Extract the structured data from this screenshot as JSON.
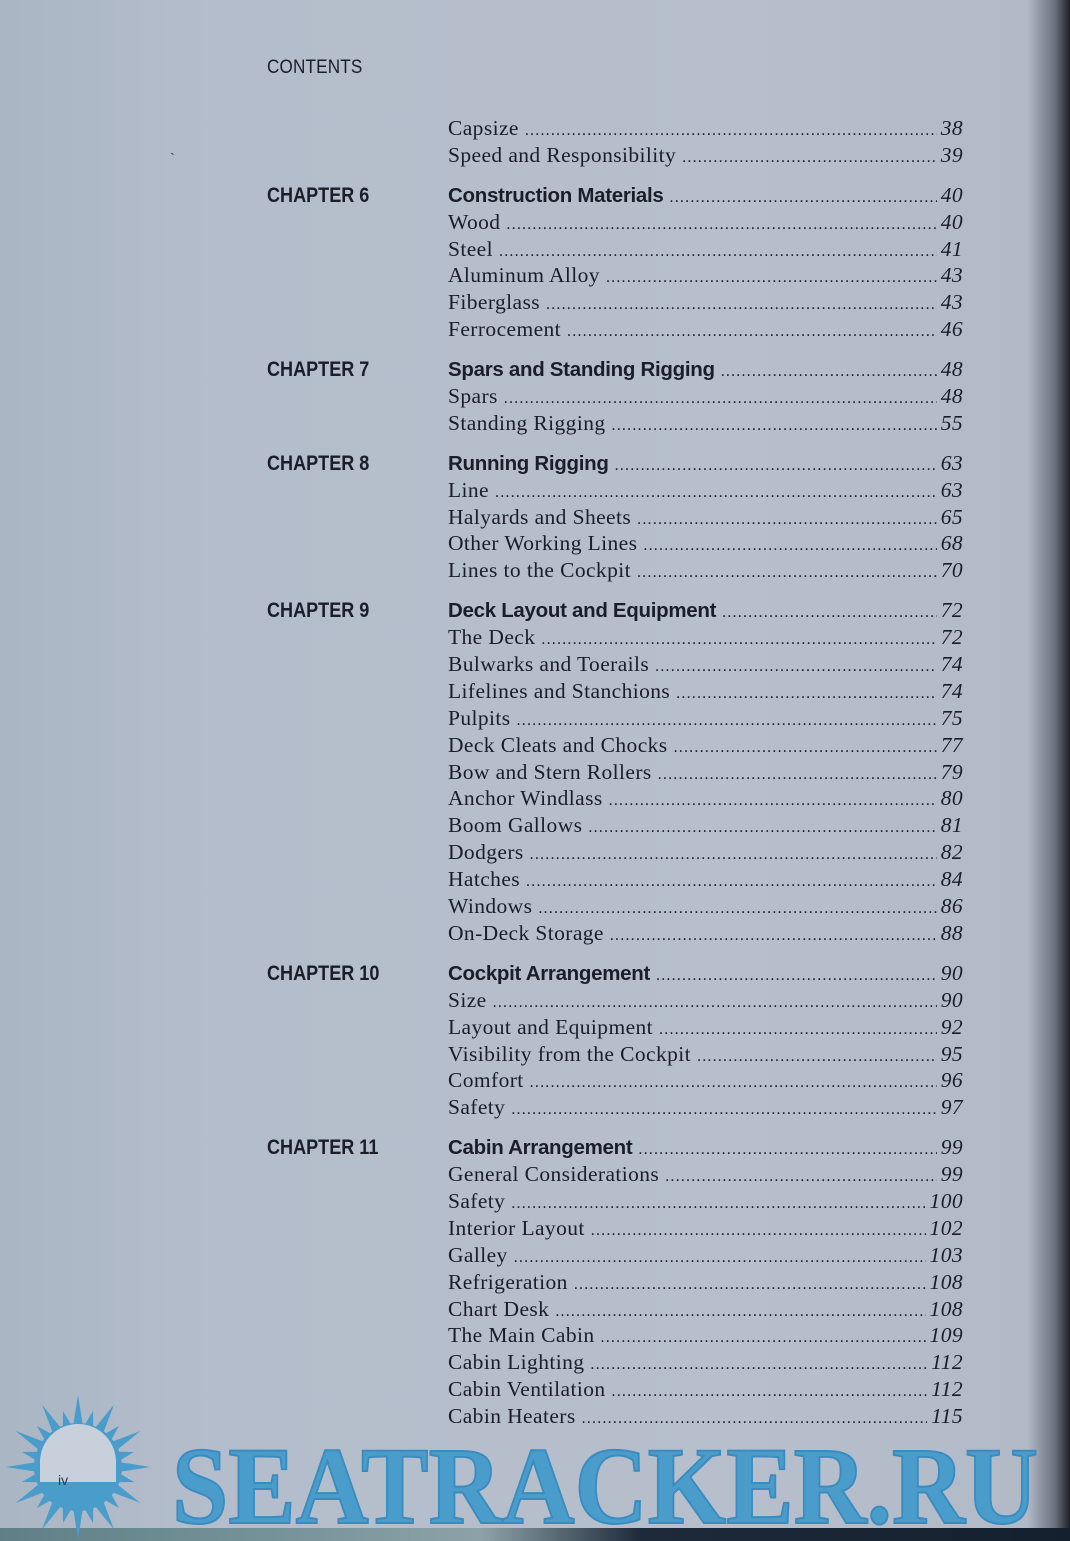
{
  "header": "CONTENTS",
  "page_number": "iv",
  "watermark": {
    "text": "SEATRACKER.RU",
    "color": "#4a9ccb"
  },
  "colors": {
    "page": "#b6bfcc",
    "text": "#1b1e28"
  },
  "groups": [
    {
      "chapter": "",
      "entries": [
        {
          "title": "Capsize",
          "page": "38"
        },
        {
          "title": "Speed and Responsibility",
          "page": "39"
        }
      ]
    },
    {
      "chapter": "CHAPTER 6",
      "entries": [
        {
          "title": "Construction Materials",
          "page": "40",
          "heading": true
        },
        {
          "title": "Wood",
          "page": "40"
        },
        {
          "title": "Steel",
          "page": "41"
        },
        {
          "title": "Aluminum Alloy",
          "page": "43"
        },
        {
          "title": "Fiberglass",
          "page": "43"
        },
        {
          "title": "Ferrocement",
          "page": "46"
        }
      ]
    },
    {
      "chapter": "CHAPTER 7",
      "entries": [
        {
          "title": "Spars and Standing Rigging",
          "page": "48",
          "heading": true
        },
        {
          "title": "Spars",
          "page": "48"
        },
        {
          "title": "Standing Rigging",
          "page": "55"
        }
      ]
    },
    {
      "chapter": "CHAPTER 8",
      "entries": [
        {
          "title": "Running Rigging",
          "page": "63",
          "heading": true
        },
        {
          "title": "Line",
          "page": "63"
        },
        {
          "title": "Halyards and Sheets",
          "page": "65"
        },
        {
          "title": "Other Working Lines",
          "page": "68"
        },
        {
          "title": "Lines to the Cockpit",
          "page": "70"
        }
      ]
    },
    {
      "chapter": "CHAPTER 9",
      "entries": [
        {
          "title": "Deck Layout and Equipment",
          "page": "72",
          "heading": true
        },
        {
          "title": "The Deck",
          "page": "72"
        },
        {
          "title": "Bulwarks and Toerails",
          "page": "74"
        },
        {
          "title": "Lifelines and Stanchions",
          "page": "74"
        },
        {
          "title": "Pulpits",
          "page": "75"
        },
        {
          "title": "Deck Cleats and Chocks",
          "page": "77"
        },
        {
          "title": "Bow and Stern Rollers",
          "page": "79"
        },
        {
          "title": "Anchor Windlass",
          "page": "80"
        },
        {
          "title": "Boom Gallows",
          "page": "81"
        },
        {
          "title": "Dodgers",
          "page": "82"
        },
        {
          "title": "Hatches",
          "page": "84"
        },
        {
          "title": "Windows",
          "page": "86"
        },
        {
          "title": "On-Deck Storage",
          "page": "88"
        }
      ]
    },
    {
      "chapter": "CHAPTER 10",
      "entries": [
        {
          "title": "Cockpit Arrangement",
          "page": "90",
          "heading": true
        },
        {
          "title": "Size",
          "page": "90"
        },
        {
          "title": "Layout and Equipment",
          "page": "92"
        },
        {
          "title": "Visibility from the Cockpit",
          "page": "95"
        },
        {
          "title": "Comfort",
          "page": "96"
        },
        {
          "title": "Safety",
          "page": "97"
        }
      ]
    },
    {
      "chapter": "CHAPTER 11",
      "entries": [
        {
          "title": "Cabin Arrangement",
          "page": "99",
          "heading": true
        },
        {
          "title": "General Considerations",
          "page": "99"
        },
        {
          "title": "Safety",
          "page": "100"
        },
        {
          "title": "Interior Layout",
          "page": "102"
        },
        {
          "title": "Galley",
          "page": "103"
        },
        {
          "title": "Refrigeration",
          "page": "108"
        },
        {
          "title": "Chart Desk",
          "page": "108"
        },
        {
          "title": "The Main Cabin",
          "page": "109"
        },
        {
          "title": "Cabin Lighting",
          "page": "112"
        },
        {
          "title": "Cabin Ventilation",
          "page": "112"
        },
        {
          "title": "Cabin Heaters",
          "page": "115"
        }
      ]
    }
  ]
}
